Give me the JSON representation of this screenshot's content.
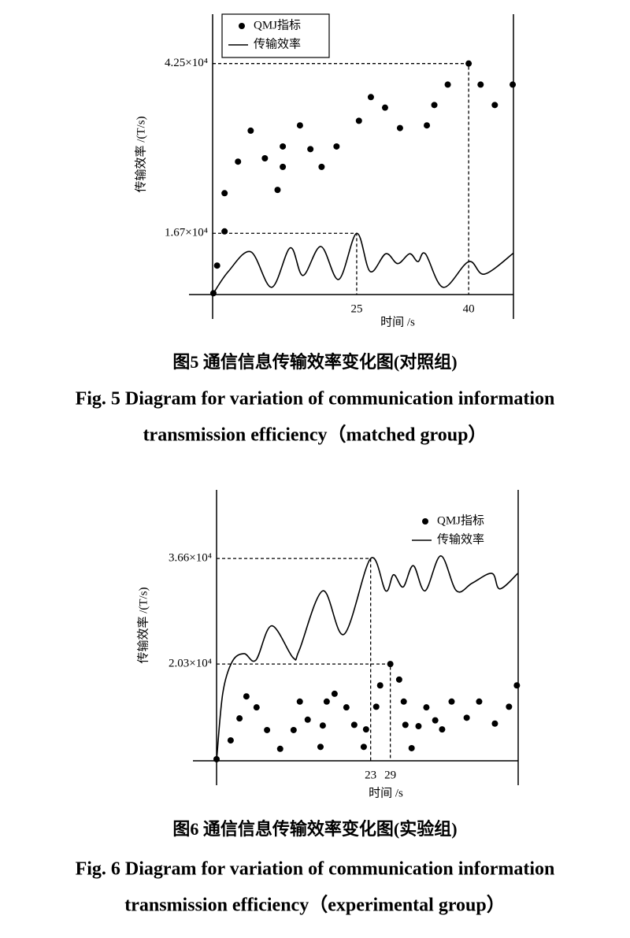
{
  "chart_data": [
    {
      "type": "line",
      "ylabel": "传输效率 /(T/s)",
      "xlabel": "时间 /s",
      "legend": "top-left",
      "legend_box": true,
      "xlim": [
        5.7,
        46
      ],
      "ylim": [
        7400,
        50000
      ],
      "xticks": [
        25,
        40
      ],
      "yticks": [
        {
          "value": 16700,
          "label": "1.67×10⁴"
        },
        {
          "value": 42500,
          "label": "4.25×10⁴"
        }
      ],
      "series": [
        {
          "name": "QMJ指标",
          "type": "scatter",
          "color": "#000000",
          "x": [
            5.8,
            6.3,
            7.3,
            7.3,
            9.1,
            10.8,
            12.7,
            14.4,
            15.1,
            15.1,
            17.4,
            18.8,
            20.3,
            22.3,
            25.3,
            26.9,
            28.8,
            30.8,
            34.4,
            35.4,
            37.2,
            40.0,
            41.6,
            43.5,
            45.9
          ],
          "values": [
            7600,
            11800,
            17000,
            22800,
            27600,
            32300,
            28100,
            23300,
            29900,
            26800,
            33100,
            29500,
            26800,
            29900,
            33800,
            37400,
            35800,
            32700,
            33100,
            36200,
            39300,
            42500,
            39300,
            36200,
            39300
          ]
        },
        {
          "name": "传输效率",
          "type": "line",
          "color": "#000000",
          "x": [
            5.7,
            7.8,
            10.8,
            13.6,
            16.1,
            17.8,
            20.2,
            22.6,
            25.0,
            26.8,
            28.9,
            30.5,
            32.1,
            33.2,
            34.2,
            36.6,
            40.0,
            42.1,
            46.0
          ],
          "values": [
            7400,
            10900,
            13900,
            8500,
            14500,
            10300,
            14700,
            9700,
            16700,
            10900,
            13600,
            12100,
            13600,
            12400,
            13600,
            8500,
            12400,
            10500,
            13700
          ]
        }
      ]
    },
    {
      "type": "line",
      "ylabel": "传输效率 /(T/s)",
      "xlabel": "时间 /s",
      "legend": "top-right",
      "legend_box": false,
      "xlim": [
        -24,
        68
      ],
      "ylim": [
        5350,
        47200
      ],
      "xticks": [
        23,
        29
      ],
      "yticks": [
        {
          "value": 36600,
          "label": "3.66×10⁴"
        },
        {
          "value": 20300,
          "label": "2.03×10⁴"
        }
      ],
      "series": [
        {
          "name": "QMJ指标",
          "type": "scatter",
          "color": "#000000",
          "x": [
            -24.0,
            -19.7,
            -17.0,
            -14.9,
            -11.8,
            -8.6,
            -4.6,
            -0.5,
            1.4,
            3.8,
            7.7,
            8.4,
            9.6,
            12.0,
            15.6,
            18.0,
            20.9,
            21.6,
            24.7,
            25.9,
            29.0,
            31.7,
            33.1,
            33.6,
            35.5,
            37.6,
            40.0,
            42.7,
            44.8,
            47.7,
            52.3,
            56.1,
            60.9,
            65.2,
            67.6
          ],
          "values": [
            5600,
            8500,
            11900,
            15300,
            13600,
            10100,
            7200,
            10100,
            14500,
            11700,
            7500,
            10800,
            14500,
            15700,
            13600,
            10900,
            7500,
            10200,
            13700,
            17000,
            20300,
            17900,
            14500,
            10900,
            7300,
            10700,
            13600,
            11600,
            10200,
            14500,
            12000,
            14500,
            11100,
            13700,
            17000
          ]
        },
        {
          "name": "传输效率",
          "type": "line",
          "color": "#000000",
          "x": [
            -24.0,
            -22.1,
            -19.2,
            -15.6,
            -12.0,
            -7.2,
            -0.7,
            1.2,
            8.4,
            14.9,
            23.0,
            27.6,
            30.0,
            32.9,
            36.0,
            39.6,
            44.4,
            49.2,
            54.0,
            60.0,
            62.4,
            67.9
          ],
          "values": [
            5350,
            15800,
            20700,
            21900,
            20900,
            26200,
            21300,
            22400,
            31600,
            24900,
            36600,
            31600,
            34100,
            32200,
            35500,
            31600,
            37000,
            31600,
            32800,
            34300,
            31900,
            34300
          ]
        }
      ]
    }
  ],
  "captions": [
    {
      "zh": "图5  通信信息传输效率变化图(对照组)",
      "en": [
        "Fig. 5  Diagram for variation of communication information",
        "transmission efficiency（matched group）"
      ]
    },
    {
      "zh": "图6  通信信息传输效率变化图(实验组)",
      "en": [
        "Fig. 6  Diagram for variation of communication information",
        "transmission efficiency（experimental group）"
      ]
    }
  ]
}
